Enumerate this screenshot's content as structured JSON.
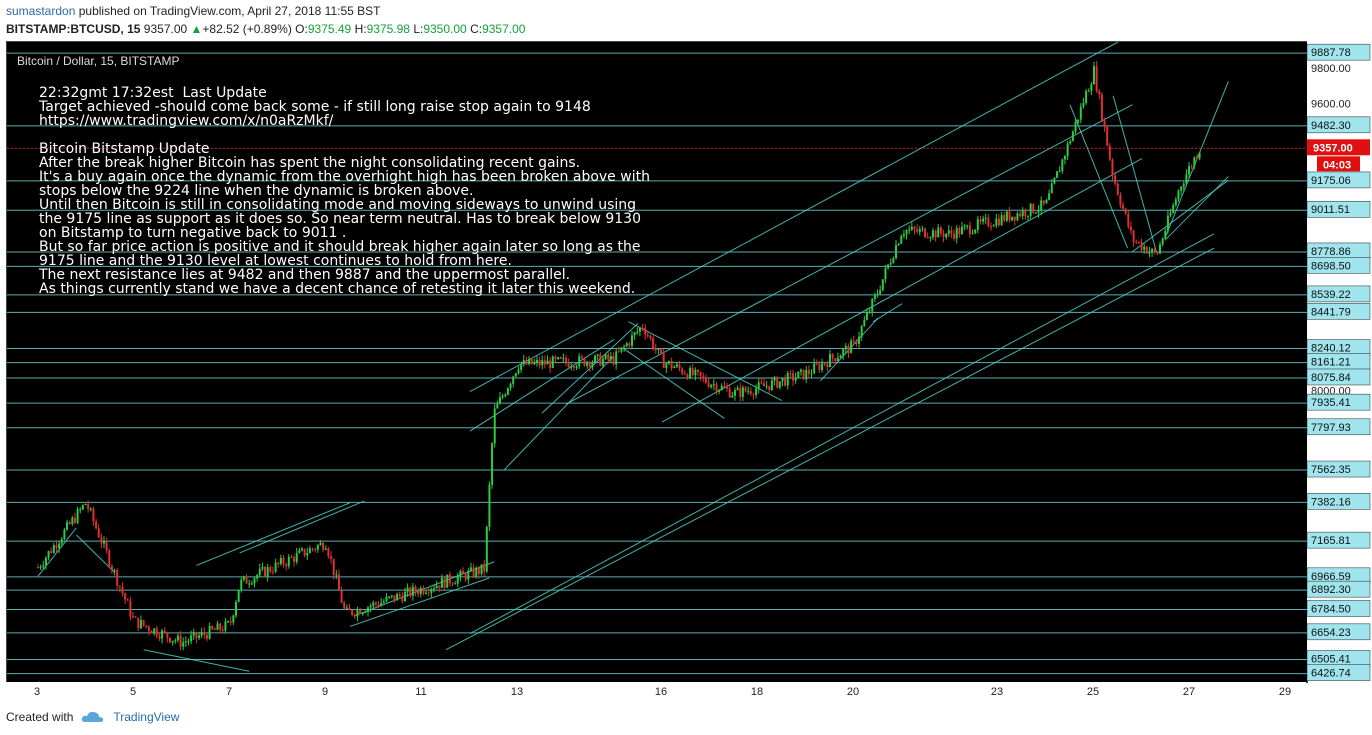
{
  "header": {
    "user": "sumastardon",
    "published_text": "published on TradingView.com, April 27, 2018 11:55 BST",
    "symbol": "BITSTAMP:BTCUSD, 15",
    "last": "9357.00",
    "change": "+82.52 (+0.89%)",
    "o_label": "O:",
    "o": "9375.49",
    "h_label": "H:",
    "h": "9375.98",
    "l_label": "L:",
    "l": "9350.00",
    "c_label": "C:",
    "c": "9357.00"
  },
  "chart_title": "Bitcoin / Dollar, 15, BITSTAMP",
  "annotation_lines": [
    "22:32gmt 17:32est  Last Update",
    "Target achieved -should come back some - if still long raise stop again to 9148",
    "https://www.tradingview.com/x/n0aRzMkf/",
    "",
    "Bitcoin Bitstamp Update",
    "After the break higher Bitcoin has spent the night consolidating recent gains.",
    "It's a buy again once the dynamic from the overhight high has been broken above with",
    "stops below the 9224 line when the dynamic is broken above.",
    "Until then Bitcoin is still in consolidating mode and moving sideways to unwind using",
    "the 9175 line as support as it does so. So near term neutral. Has to break below 9130",
    "on Bitstamp to turn negative back to 9011 .",
    "But so far price action is positive and it should break higher again later so long as the",
    "9175 line and the 9130 level at lowest continues to hold from here.",
    "The next resistance lies at 9482 and then 9887 and the uppermost parallel.",
    "As things currently stand we have a decent chance of retesting it later this weekend."
  ],
  "footer": {
    "created_with": "Created with",
    "brand": "TradingView"
  },
  "colors": {
    "up": "#2ecc40",
    "down": "#e03030",
    "line": "#4fd1c5",
    "hline": "#7ee8f0",
    "label_bg": "#a0e4ee",
    "price_tag": "#e01010"
  },
  "chart_data": {
    "type": "candlestick",
    "title": "Bitcoin / Dollar, 15, BITSTAMP",
    "x_ticks": [
      "3",
      "5",
      "7",
      "9",
      "11",
      "13",
      "16",
      "18",
      "20",
      "23",
      "25",
      "27",
      "29"
    ],
    "ylim": [
      6380,
      9950
    ],
    "horizontal_levels": [
      9887.78,
      9482.3,
      9175.06,
      9011.51,
      8778.86,
      8698.5,
      8539.22,
      8441.79,
      8240.12,
      8161.21,
      8075.84,
      7935.41,
      7797.93,
      7562.35,
      7382.16,
      7165.81,
      6966.59,
      6892.3,
      6784.5,
      6654.23,
      6505.41,
      6426.74
    ],
    "axis_ticks": [
      9800.0,
      9600.0,
      8000.0
    ],
    "current_price": "9357.00",
    "countdown": "04:03",
    "price_path": [
      [
        "3",
        7020
      ],
      [
        "4",
        7380
      ],
      [
        "5",
        6720
      ],
      [
        "6",
        6600
      ],
      [
        "7",
        6700
      ],
      [
        "7.2",
        6930
      ],
      [
        "9",
        7160
      ],
      [
        "9.4",
        6760
      ],
      [
        "11",
        6900
      ],
      [
        "12.3",
        7010
      ],
      [
        "12.5",
        7880
      ],
      [
        "13",
        8150
      ],
      [
        "15",
        8180
      ],
      [
        "15.6",
        8370
      ],
      [
        "16",
        8170
      ],
      [
        "17.5",
        7990
      ],
      [
        "18",
        8020
      ],
      [
        "19",
        8100
      ],
      [
        "20",
        8260
      ],
      [
        "20.5",
        8560
      ],
      [
        "21",
        8900
      ],
      [
        "22",
        8880
      ],
      [
        "23",
        8960
      ],
      [
        "24",
        9040
      ],
      [
        "24.6",
        9480
      ],
      [
        "25",
        9790
      ],
      [
        "25.4",
        9200
      ],
      [
        "25.8",
        8850
      ],
      [
        "26.3",
        8760
      ],
      [
        "26.8",
        9150
      ],
      [
        "27.2",
        9357
      ]
    ]
  }
}
